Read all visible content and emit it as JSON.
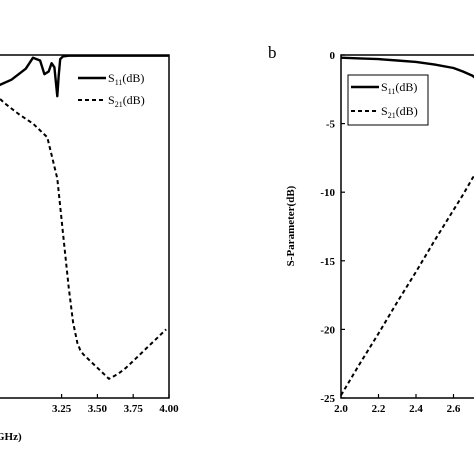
{
  "chart_data": [
    {
      "panel": "",
      "type": "line",
      "xlabel": "GHz)",
      "ylabel": "",
      "xlim": [
        2.75,
        4.0
      ],
      "ylim": [
        -25,
        0
      ],
      "xticks": [
        3.25,
        3.5,
        3.75,
        4.0
      ],
      "x_tick_labels": [
        "3.25",
        "3.50",
        "3.75",
        "4.00"
      ],
      "legend": {
        "position": "top-right"
      },
      "series": [
        {
          "name": "S",
          "name_sub": "11",
          "name_suffix": "(dB)",
          "style": "solid",
          "x": [
            2.75,
            2.9,
            3.0,
            3.05,
            3.1,
            3.13,
            3.16,
            3.18,
            3.2,
            3.21,
            3.22,
            3.23,
            3.24,
            3.26,
            3.3,
            3.4,
            3.6,
            3.8,
            4.0
          ],
          "y": [
            -2.5,
            -1.8,
            -1.0,
            -0.2,
            -0.4,
            -1.4,
            -1.2,
            -0.6,
            -0.9,
            -2.0,
            -3.0,
            -1.5,
            -0.3,
            -0.1,
            -0.05,
            -0.05,
            -0.05,
            -0.05,
            -0.05
          ]
        },
        {
          "name": "S",
          "name_sub": "21",
          "name_suffix": "(dB)",
          "style": "dashed",
          "x": [
            2.75,
            2.85,
            2.95,
            3.05,
            3.15,
            3.22,
            3.26,
            3.3,
            3.33,
            3.36,
            3.38,
            3.4,
            3.45,
            3.5,
            3.55,
            3.58,
            3.6,
            3.65,
            3.7,
            3.75,
            3.8,
            3.85,
            3.9,
            3.95,
            3.98
          ],
          "y": [
            -2.5,
            -3.5,
            -4.3,
            -5.0,
            -6.0,
            -9.0,
            -13.0,
            -17.0,
            -19.5,
            -21.0,
            -21.5,
            -21.8,
            -22.3,
            -22.8,
            -23.3,
            -23.6,
            -23.5,
            -23.2,
            -22.8,
            -22.3,
            -21.8,
            -21.3,
            -20.8,
            -20.3,
            -20.0
          ]
        }
      ]
    },
    {
      "panel": "b",
      "type": "line",
      "xlabel": "",
      "ylabel": "S-Parameter(dB)",
      "xlim": [
        2.0,
        2.8
      ],
      "ylim": [
        -25,
        0
      ],
      "xticks": [
        2.0,
        2.2,
        2.4,
        2.6
      ],
      "x_tick_labels": [
        "2.0",
        "2.2",
        "2.4",
        "2.6"
      ],
      "yticks": [
        0,
        -5,
        -10,
        -15,
        -20,
        -25
      ],
      "y_tick_labels": [
        "0",
        "-5",
        "-10",
        "-15",
        "-20",
        "-25"
      ],
      "legend": {
        "position": "top-right"
      },
      "series": [
        {
          "name": "S",
          "name_sub": "11",
          "name_suffix": "(dB)",
          "style": "solid",
          "x": [
            2.0,
            2.1,
            2.2,
            2.3,
            2.4,
            2.5,
            2.6,
            2.65,
            2.7,
            2.74
          ],
          "y": [
            -0.2,
            -0.25,
            -0.3,
            -0.4,
            -0.5,
            -0.7,
            -0.95,
            -1.2,
            -1.5,
            -1.9
          ]
        },
        {
          "name": "S",
          "name_sub": "21",
          "name_suffix": "(dB)",
          "style": "dashed",
          "x": [
            2.0,
            2.1,
            2.2,
            2.3,
            2.4,
            2.5,
            2.6,
            2.65,
            2.7,
            2.74
          ],
          "y": [
            -24.8,
            -22.5,
            -20.3,
            -18.0,
            -15.8,
            -13.5,
            -11.3,
            -10.2,
            -9.0,
            -8.2
          ]
        }
      ]
    }
  ]
}
